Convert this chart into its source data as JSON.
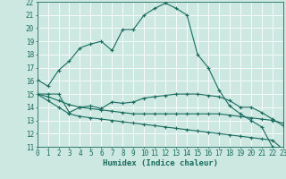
{
  "xlabel": "Humidex (Indice chaleur)",
  "bg_color": "#cce8e0",
  "line_color": "#1a6b60",
  "grid_color": "#ffffff",
  "x_min": 0,
  "x_max": 23,
  "y_min": 11,
  "y_max": 22,
  "line1_x": [
    0,
    1,
    2,
    3,
    4,
    5,
    6,
    7,
    8,
    9,
    10,
    11,
    12,
    13,
    14,
    15,
    16,
    17,
    18,
    19,
    20,
    21,
    22,
    23
  ],
  "line1_y": [
    16.1,
    15.6,
    16.8,
    17.5,
    18.5,
    18.8,
    19.0,
    18.3,
    19.9,
    19.9,
    21.0,
    21.5,
    21.9,
    21.5,
    21.0,
    18.0,
    17.0,
    15.3,
    14.1,
    13.5,
    13.0,
    12.5,
    11.0,
    10.8
  ],
  "line2_x": [
    0,
    1,
    2,
    3,
    4,
    5,
    6,
    7,
    8,
    9,
    10,
    11,
    12,
    13,
    14,
    15,
    16,
    17,
    18,
    19,
    20,
    21,
    22,
    23
  ],
  "line2_y": [
    15.0,
    15.0,
    15.0,
    13.6,
    14.0,
    14.1,
    13.9,
    14.4,
    14.3,
    14.4,
    14.7,
    14.8,
    14.9,
    15.0,
    15.0,
    15.0,
    14.9,
    14.8,
    14.5,
    14.0,
    14.0,
    13.6,
    13.1,
    12.6
  ],
  "line3_x": [
    0,
    1,
    2,
    3,
    4,
    5,
    6,
    7,
    8,
    9,
    10,
    11,
    12,
    13,
    14,
    15,
    16,
    17,
    18,
    19,
    20,
    21,
    22,
    23
  ],
  "line3_y": [
    15.0,
    14.8,
    14.5,
    14.2,
    14.0,
    13.9,
    13.8,
    13.7,
    13.6,
    13.5,
    13.5,
    13.5,
    13.5,
    13.5,
    13.5,
    13.5,
    13.5,
    13.5,
    13.4,
    13.3,
    13.2,
    13.1,
    13.0,
    12.8
  ],
  "line4_x": [
    0,
    1,
    2,
    3,
    4,
    5,
    6,
    7,
    8,
    9,
    10,
    11,
    12,
    13,
    14,
    15,
    16,
    17,
    18,
    19,
    20,
    21,
    22,
    23
  ],
  "line4_y": [
    15.0,
    14.5,
    14.0,
    13.5,
    13.3,
    13.2,
    13.1,
    13.0,
    12.9,
    12.8,
    12.7,
    12.6,
    12.5,
    12.4,
    12.3,
    12.2,
    12.1,
    12.0,
    11.9,
    11.8,
    11.7,
    11.6,
    11.5,
    10.8
  ],
  "tick_fontsize": 5.5,
  "xlabel_fontsize": 6.5
}
